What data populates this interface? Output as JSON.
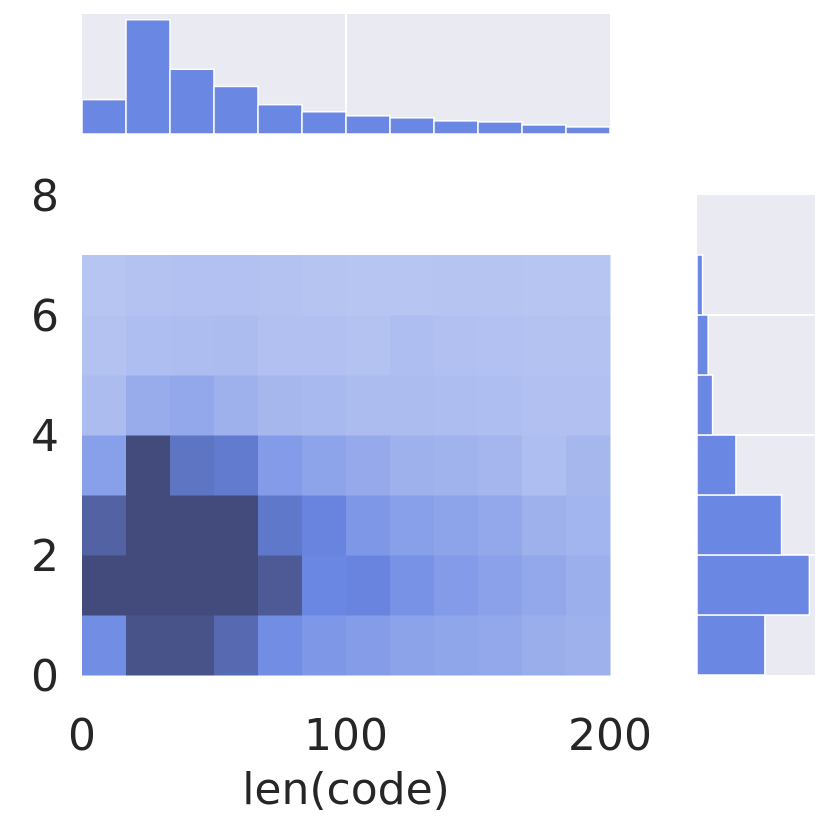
{
  "chart_data": {
    "type": "heatmap",
    "kind": "joint-histogram",
    "xlabel": "len(code)",
    "ylabel": "",
    "xlim": [
      0,
      200
    ],
    "ylim": [
      0,
      8
    ],
    "x_ticks": [
      0,
      100,
      200
    ],
    "y_ticks": [
      0,
      2,
      4,
      6,
      8
    ],
    "x_bin_edges": [
      0,
      16.67,
      33.33,
      50,
      66.67,
      83.33,
      100,
      116.67,
      133.33,
      150,
      166.67,
      183.33,
      200
    ],
    "y_bin_edges": [
      0,
      1,
      2,
      3,
      4,
      5,
      6,
      7
    ],
    "density_rows_bottom_to_top": [
      [
        0.55,
        0.95,
        0.95,
        0.8,
        0.55,
        0.45,
        0.4,
        0.35,
        0.32,
        0.3,
        0.25,
        0.22
      ],
      [
        1.0,
        1.0,
        1.0,
        1.0,
        0.9,
        0.6,
        0.62,
        0.5,
        0.42,
        0.36,
        0.3,
        0.24
      ],
      [
        0.85,
        1.0,
        1.0,
        1.0,
        0.7,
        0.62,
        0.45,
        0.38,
        0.34,
        0.3,
        0.22,
        0.18
      ],
      [
        0.38,
        1.0,
        0.72,
        0.68,
        0.42,
        0.34,
        0.28,
        0.22,
        0.2,
        0.17,
        0.1,
        0.16
      ],
      [
        0.12,
        0.26,
        0.3,
        0.22,
        0.16,
        0.15,
        0.12,
        0.12,
        0.11,
        0.1,
        0.08,
        0.08
      ],
      [
        0.06,
        0.1,
        0.11,
        0.12,
        0.08,
        0.08,
        0.06,
        0.1,
        0.08,
        0.07,
        0.06,
        0.06
      ],
      [
        0.04,
        0.06,
        0.07,
        0.07,
        0.06,
        0.05,
        0.04,
        0.04,
        0.05,
        0.05,
        0.04,
        0.04
      ]
    ],
    "marginal_x_counts": [
      34,
      113,
      64,
      47,
      29,
      22,
      18,
      16,
      13,
      12,
      9,
      7
    ],
    "marginal_y_counts": [
      61,
      101,
      76,
      35,
      14,
      10,
      5
    ],
    "color": "#6a87e3",
    "dark_color": "#434b7c",
    "grid": true,
    "axes_facecolor": "#eaeaf2"
  }
}
